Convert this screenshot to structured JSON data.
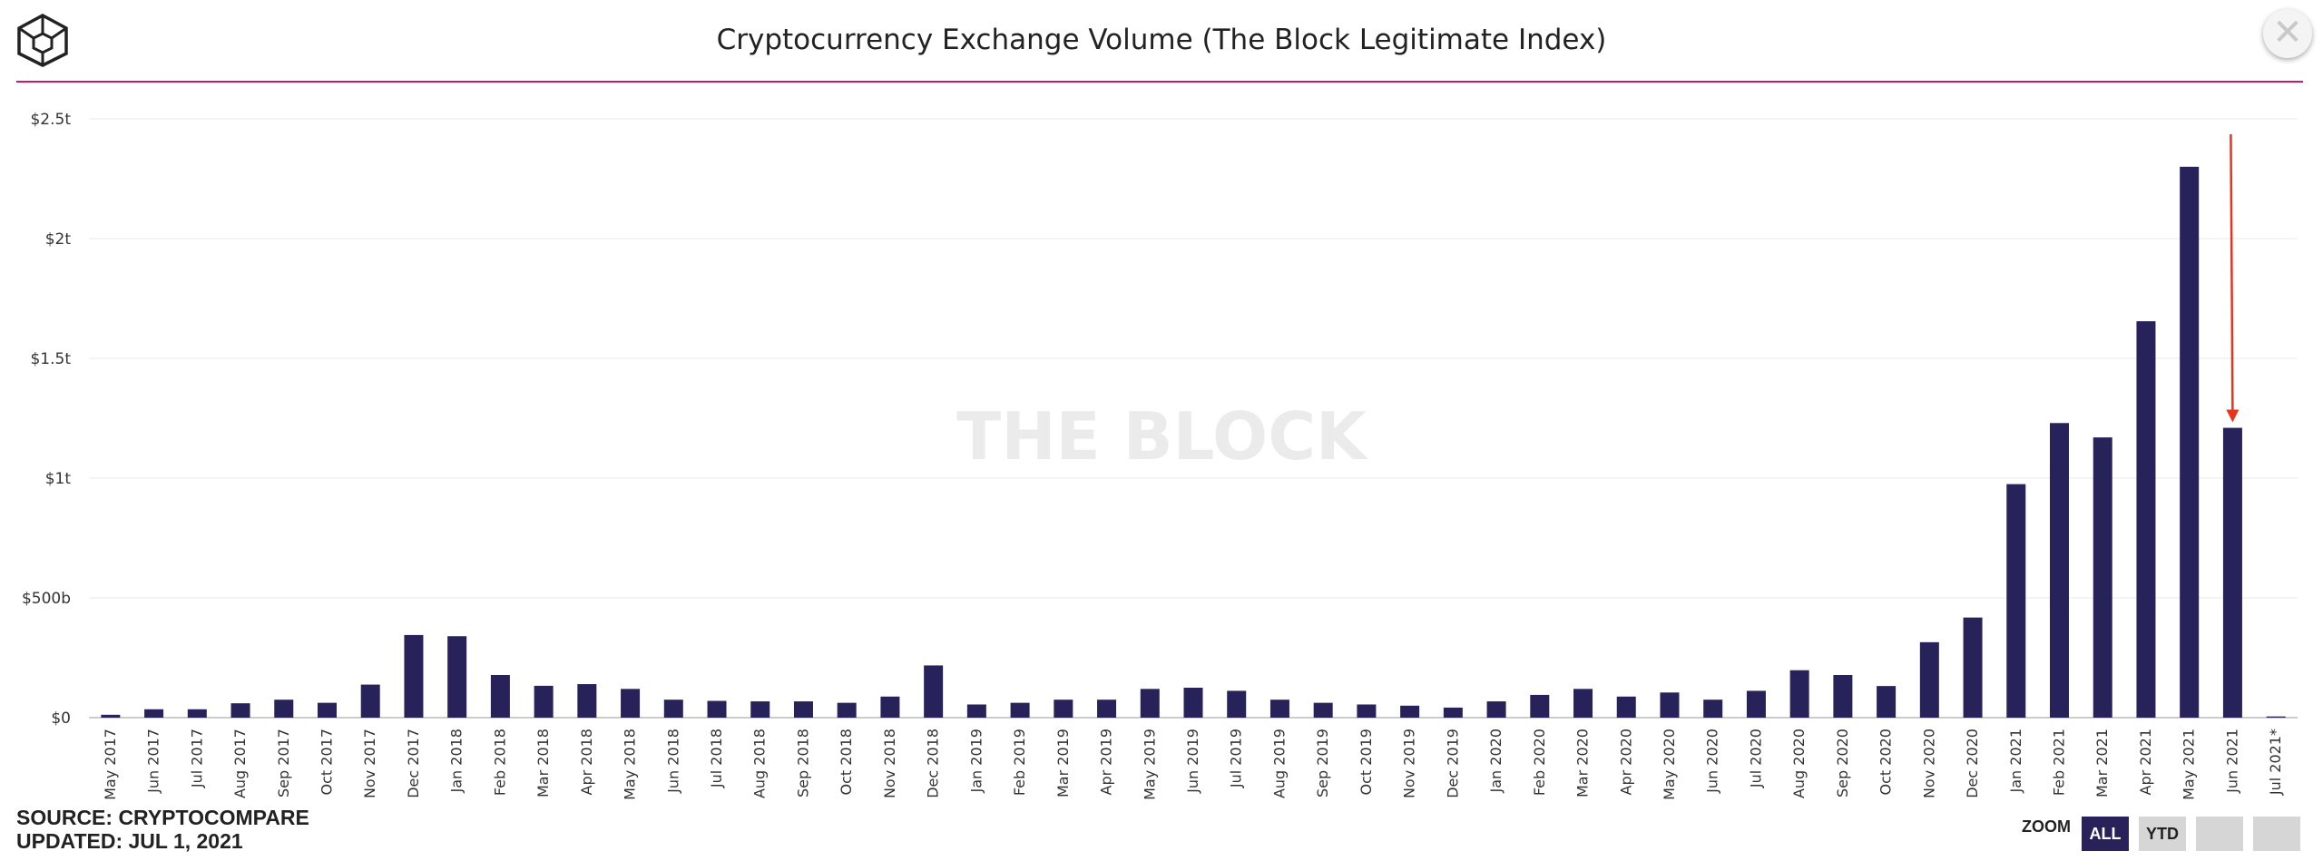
{
  "header": {
    "title": "Cryptocurrency Exchange Volume (The Block Legitimate Index)"
  },
  "watermark": "THE BLOCK",
  "footer": {
    "source": "SOURCE: CRYPTOCOMPARE",
    "updated": "UPDATED: JUL 1, 2021"
  },
  "zoom": {
    "label": "ZOOM",
    "buttons": [
      "ALL",
      "YTD",
      "",
      ""
    ],
    "active": "ALL"
  },
  "icons": {
    "logo": "the-block-cube-logo",
    "close": "close-icon",
    "arrow": "red-down-arrow"
  },
  "colors": {
    "bar": "#27225a",
    "accent_rule": "#c2187d",
    "annotation_arrow": "#e8341c",
    "zoom_active": "#27225a"
  },
  "chart_data": {
    "type": "bar",
    "title": "Cryptocurrency Exchange Volume (The Block Legitimate Index)",
    "xlabel": "",
    "ylabel": "",
    "ylim": [
      0,
      2500
    ],
    "y_unit": "billions USD",
    "y_ticks": [
      0,
      500,
      1000,
      1500,
      2000,
      2500
    ],
    "y_tick_labels": [
      "$0",
      "$500b",
      "$1t",
      "$1.5t",
      "$2t",
      "$2.5t"
    ],
    "grid": true,
    "legend": "none",
    "annotation": {
      "type": "arrow",
      "target": "Jun 2021",
      "color": "#e8341c"
    },
    "categories": [
      "May 2017",
      "Jun 2017",
      "Jul 2017",
      "Aug 2017",
      "Sep 2017",
      "Oct 2017",
      "Nov 2017",
      "Dec 2017",
      "Jan 2018",
      "Feb 2018",
      "Mar 2018",
      "Apr 2018",
      "May 2018",
      "Jun 2018",
      "Jul 2018",
      "Aug 2018",
      "Sep 2018",
      "Oct 2018",
      "Nov 2018",
      "Dec 2018",
      "Jan 2019",
      "Feb 2019",
      "Mar 2019",
      "Apr 2019",
      "May 2019",
      "Jun 2019",
      "Jul 2019",
      "Aug 2019",
      "Sep 2019",
      "Oct 2019",
      "Nov 2019",
      "Dec 2019",
      "Jan 2020",
      "Feb 2020",
      "Mar 2020",
      "Apr 2020",
      "May 2020",
      "Jun 2020",
      "Jul 2020",
      "Aug 2020",
      "Sep 2020",
      "Oct 2020",
      "Nov 2020",
      "Dec 2020",
      "Jan 2021",
      "Feb 2021",
      "Mar 2021",
      "Apr 2021",
      "May 2021",
      "Jun 2021",
      "Jul 2021*"
    ],
    "values": [
      12,
      35,
      35,
      60,
      75,
      62,
      138,
      345,
      340,
      178,
      133,
      140,
      120,
      75,
      70,
      68,
      68,
      62,
      88,
      218,
      55,
      62,
      75,
      75,
      120,
      125,
      112,
      75,
      62,
      55,
      50,
      42,
      68,
      95,
      120,
      88,
      105,
      75,
      112,
      198,
      178,
      132,
      315,
      418,
      975,
      1230,
      1170,
      1655,
      2300,
      1210,
      5
    ]
  }
}
